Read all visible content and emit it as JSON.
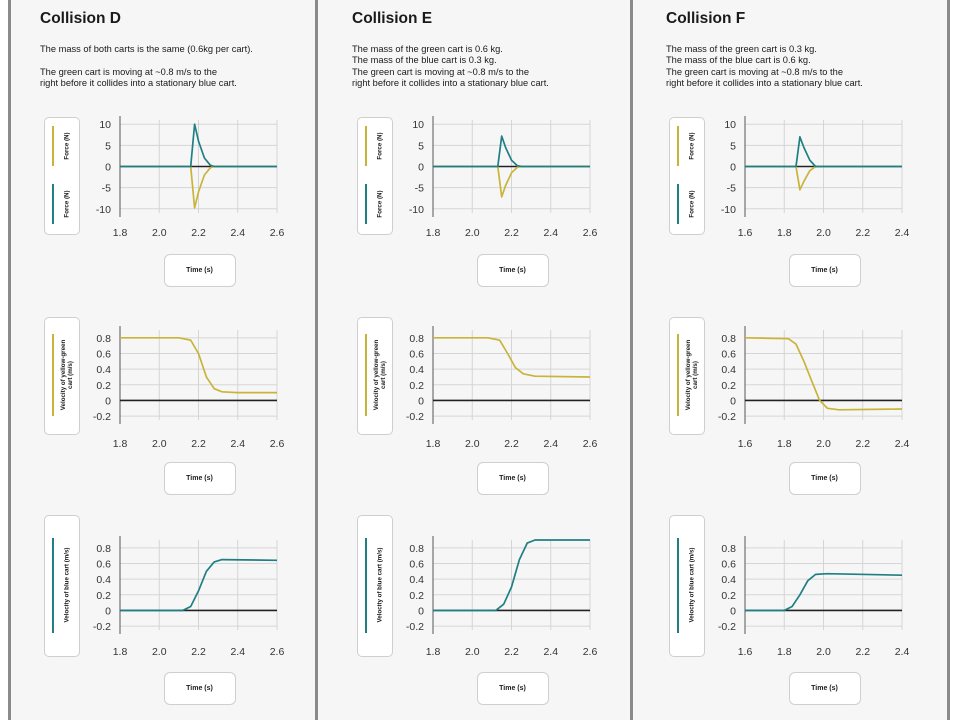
{
  "colors": {
    "yellow_green": "#c9b43a",
    "blue": "#1f7f83",
    "zero_line": "#222222",
    "grid": "#d5d5d5"
  },
  "time_label": "Time (s)",
  "columns": [
    {
      "title": "Collision D",
      "description": "The mass of both carts is the same (0.6kg per cart).\n\nThe green cart is moving at ~0.8 m/s to the\nright before it collides into a stationary blue cart."
    },
    {
      "title": "Collision E",
      "description": "The mass of the green cart is 0.6 kg.\nThe mass of the blue cart is 0.3 kg.\nThe green cart is moving at ~0.8 m/s to the\nright before it collides into a stationary blue cart."
    },
    {
      "title": "Collision F",
      "description": "The mass of the green cart is 0.3 kg.\nThe mass of the blue cart is 0.6 kg.\nThe green cart is moving at ~0.8 m/s to the\nright before it collides into a stationary blue cart."
    }
  ],
  "chart_data": [
    {
      "type": "line",
      "panel": "Collision D",
      "ylabels": [
        "Force (N)",
        "Force (N)"
      ],
      "xlabel": "Time (s)",
      "xlim": [
        1.8,
        2.6
      ],
      "ylim": [
        -11,
        11
      ],
      "x_ticks": [
        "1.8",
        "2.0",
        "2.2",
        "2.4",
        "2.6"
      ],
      "y_ticks": [
        "10",
        "5",
        "0",
        "-5",
        "-10"
      ],
      "series": [
        {
          "color": "#c9b43a",
          "points": [
            [
              1.8,
              0
            ],
            [
              2.16,
              0
            ],
            [
              2.18,
              -9.8
            ],
            [
              2.2,
              -6
            ],
            [
              2.23,
              -2
            ],
            [
              2.26,
              -0.3
            ],
            [
              2.28,
              0
            ],
            [
              2.6,
              0
            ]
          ]
        },
        {
          "color": "#1f7f83",
          "points": [
            [
              1.8,
              0
            ],
            [
              2.16,
              0
            ],
            [
              2.18,
              10
            ],
            [
              2.2,
              6
            ],
            [
              2.23,
              2
            ],
            [
              2.26,
              0.3
            ],
            [
              2.28,
              0
            ],
            [
              2.6,
              0
            ]
          ]
        }
      ]
    },
    {
      "type": "line",
      "panel": "Collision D",
      "ylabels": [
        "Velocity of yellow-green cart (m/s)"
      ],
      "xlabel": "Time (s)",
      "xlim": [
        1.8,
        2.6
      ],
      "ylim": [
        -0.25,
        0.9
      ],
      "x_ticks": [
        "1.8",
        "2.0",
        "2.2",
        "2.4",
        "2.6"
      ],
      "y_ticks": [
        "0.8",
        "0.6",
        "0.4",
        "0.2",
        "0",
        "-0.2"
      ],
      "series": [
        {
          "color": "#c9b43a",
          "points": [
            [
              1.8,
              0.8
            ],
            [
              2.1,
              0.8
            ],
            [
              2.16,
              0.77
            ],
            [
              2.2,
              0.6
            ],
            [
              2.24,
              0.3
            ],
            [
              2.28,
              0.15
            ],
            [
              2.32,
              0.11
            ],
            [
              2.4,
              0.1
            ],
            [
              2.6,
              0.1
            ]
          ]
        }
      ]
    },
    {
      "type": "line",
      "panel": "Collision D",
      "ylabels": [
        "Velocity of blue cart (m/s)"
      ],
      "xlabel": "Time (s)",
      "xlim": [
        1.8,
        2.6
      ],
      "ylim": [
        -0.25,
        0.9
      ],
      "x_ticks": [
        "1.8",
        "2.0",
        "2.2",
        "2.4",
        "2.6"
      ],
      "y_ticks": [
        "0.8",
        "0.6",
        "0.4",
        "0.2",
        "0",
        "-0.2"
      ],
      "series": [
        {
          "color": "#1f7f83",
          "points": [
            [
              1.8,
              0
            ],
            [
              2.12,
              0
            ],
            [
              2.16,
              0.05
            ],
            [
              2.2,
              0.25
            ],
            [
              2.24,
              0.5
            ],
            [
              2.28,
              0.62
            ],
            [
              2.32,
              0.65
            ],
            [
              2.6,
              0.64
            ]
          ]
        }
      ]
    },
    {
      "type": "line",
      "panel": "Collision E",
      "ylabels": [
        "Force (N)",
        "Force (N)"
      ],
      "xlabel": "Time (s)",
      "xlim": [
        1.8,
        2.6
      ],
      "ylim": [
        -11,
        11
      ],
      "x_ticks": [
        "1.8",
        "2.0",
        "2.2",
        "2.4",
        "2.6"
      ],
      "y_ticks": [
        "10",
        "5",
        "0",
        "-5",
        "-10"
      ],
      "series": [
        {
          "color": "#c9b43a",
          "points": [
            [
              1.8,
              0
            ],
            [
              2.13,
              0
            ],
            [
              2.15,
              -7.2
            ],
            [
              2.17,
              -4.5
            ],
            [
              2.2,
              -1.5
            ],
            [
              2.23,
              -0.2
            ],
            [
              2.25,
              0
            ],
            [
              2.6,
              0
            ]
          ]
        },
        {
          "color": "#1f7f83",
          "points": [
            [
              1.8,
              0
            ],
            [
              2.13,
              0
            ],
            [
              2.15,
              7.2
            ],
            [
              2.17,
              4.5
            ],
            [
              2.2,
              1.5
            ],
            [
              2.23,
              0.2
            ],
            [
              2.25,
              0
            ],
            [
              2.6,
              0
            ]
          ]
        }
      ]
    },
    {
      "type": "line",
      "panel": "Collision E",
      "ylabels": [
        "Velocity of yellow-green cart (m/s)"
      ],
      "xlabel": "Time (s)",
      "xlim": [
        1.8,
        2.6
      ],
      "ylim": [
        -0.25,
        0.9
      ],
      "x_ticks": [
        "1.8",
        "2.0",
        "2.2",
        "2.4",
        "2.6"
      ],
      "y_ticks": [
        "0.8",
        "0.6",
        "0.4",
        "0.2",
        "0",
        "-0.2"
      ],
      "series": [
        {
          "color": "#c9b43a",
          "points": [
            [
              1.8,
              0.8
            ],
            [
              2.08,
              0.8
            ],
            [
              2.14,
              0.77
            ],
            [
              2.18,
              0.6
            ],
            [
              2.22,
              0.42
            ],
            [
              2.26,
              0.34
            ],
            [
              2.32,
              0.31
            ],
            [
              2.6,
              0.3
            ]
          ]
        }
      ]
    },
    {
      "type": "line",
      "panel": "Collision E",
      "ylabels": [
        "Velocity of blue cart (m/s)"
      ],
      "xlabel": "Time (s)",
      "xlim": [
        1.8,
        2.6
      ],
      "ylim": [
        -0.25,
        0.9
      ],
      "x_ticks": [
        "1.8",
        "2.0",
        "2.2",
        "2.4",
        "2.6"
      ],
      "y_ticks": [
        "0.8",
        "0.6",
        "0.4",
        "0.2",
        "0",
        "-0.2"
      ],
      "series": [
        {
          "color": "#1f7f83",
          "points": [
            [
              1.8,
              0
            ],
            [
              2.12,
              0
            ],
            [
              2.16,
              0.08
            ],
            [
              2.2,
              0.3
            ],
            [
              2.24,
              0.65
            ],
            [
              2.28,
              0.86
            ],
            [
              2.32,
              0.9
            ],
            [
              2.6,
              0.9
            ]
          ]
        }
      ]
    },
    {
      "type": "line",
      "panel": "Collision F",
      "ylabels": [
        "Force (N)",
        "Force (N)"
      ],
      "xlabel": "Time (s)",
      "xlim": [
        1.6,
        2.4
      ],
      "ylim": [
        -11,
        11
      ],
      "x_ticks": [
        "1.6",
        "1.8",
        "2.0",
        "2.2",
        "2.4"
      ],
      "y_ticks": [
        "10",
        "5",
        "0",
        "-5",
        "-10"
      ],
      "series": [
        {
          "color": "#c9b43a",
          "points": [
            [
              1.6,
              0
            ],
            [
              1.86,
              0
            ],
            [
              1.88,
              -5.5
            ],
            [
              1.9,
              -3.5
            ],
            [
              1.93,
              -1
            ],
            [
              1.96,
              0
            ],
            [
              2.4,
              0
            ]
          ]
        },
        {
          "color": "#1f7f83",
          "points": [
            [
              1.6,
              0
            ],
            [
              1.86,
              0
            ],
            [
              1.88,
              7
            ],
            [
              1.9,
              4.5
            ],
            [
              1.93,
              1.5
            ],
            [
              1.96,
              0
            ],
            [
              2.4,
              0
            ]
          ]
        }
      ]
    },
    {
      "type": "line",
      "panel": "Collision F",
      "ylabels": [
        "Velocity of yellow-green cart (m/s)"
      ],
      "xlabel": "Time (s)",
      "xlim": [
        1.6,
        2.4
      ],
      "ylim": [
        -0.25,
        0.9
      ],
      "x_ticks": [
        "1.6",
        "1.8",
        "2.0",
        "2.2",
        "2.4"
      ],
      "y_ticks": [
        "0.8",
        "0.6",
        "0.4",
        "0.2",
        "0",
        "-0.2"
      ],
      "series": [
        {
          "color": "#c9b43a",
          "points": [
            [
              1.6,
              0.8
            ],
            [
              1.82,
              0.79
            ],
            [
              1.86,
              0.72
            ],
            [
              1.9,
              0.5
            ],
            [
              1.94,
              0.25
            ],
            [
              1.98,
              0.0
            ],
            [
              2.02,
              -0.1
            ],
            [
              2.08,
              -0.12
            ],
            [
              2.4,
              -0.11
            ]
          ]
        }
      ]
    },
    {
      "type": "line",
      "panel": "Collision F",
      "ylabels": [
        "Velocity of blue cart (m/s)"
      ],
      "xlabel": "Time (s)",
      "xlim": [
        1.6,
        2.4
      ],
      "ylim": [
        -0.25,
        0.9
      ],
      "x_ticks": [
        "1.6",
        "1.8",
        "2.0",
        "2.2",
        "2.4"
      ],
      "y_ticks": [
        "0.8",
        "0.6",
        "0.4",
        "0.2",
        "0",
        "-0.2"
      ],
      "series": [
        {
          "color": "#1f7f83",
          "points": [
            [
              1.6,
              0
            ],
            [
              1.8,
              0
            ],
            [
              1.84,
              0.05
            ],
            [
              1.88,
              0.2
            ],
            [
              1.92,
              0.38
            ],
            [
              1.96,
              0.46
            ],
            [
              2.02,
              0.47
            ],
            [
              2.4,
              0.45
            ]
          ]
        }
      ]
    }
  ]
}
